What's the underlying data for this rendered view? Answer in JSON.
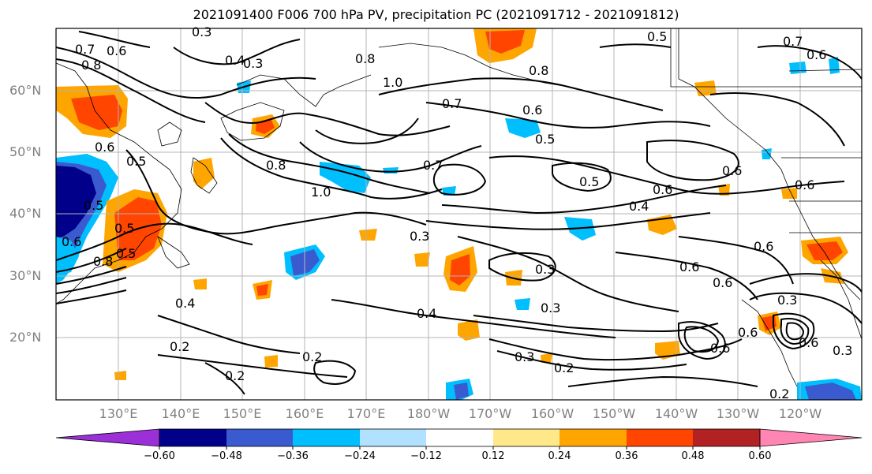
{
  "title": "2021091400 F006 700 hPa PV, precipitation PC (2021091712 - 2021091812)",
  "lat_labels": [
    "60°N",
    "50°N",
    "40°N",
    "30°N",
    "20°N"
  ],
  "lon_labels": [
    "130°E",
    "140°E",
    "150°E",
    "160°E",
    "170°E",
    "180°W",
    "170°W",
    "160°W",
    "150°W",
    "140°W",
    "130°W",
    "120°W"
  ],
  "colorbar": {
    "labels": [
      "−0.60",
      "−0.48",
      "−0.36",
      "−0.24",
      "−0.12",
      "0.12",
      "0.24",
      "0.36",
      "0.48",
      "0.60"
    ],
    "colors": [
      "#9b30d9",
      "#00008b",
      "#3a5bcf",
      "#00bfff",
      "#b0e2ff",
      "#ffffff",
      "#ffe88a",
      "#ffa500",
      "#ff4500",
      "#b22222",
      "#ff85b3"
    ]
  },
  "contour_labels": [
    "0.3",
    "0.4",
    "0.3",
    "0.8",
    "0.7",
    "0.6",
    "0.5",
    "1.0",
    "0.7",
    "0.6",
    "0.5",
    "0.7",
    "0.6",
    "0.8",
    "0.8",
    "0.5",
    "0.6",
    "0.6",
    "0.5",
    "1.0",
    "0.7",
    "0.8",
    "0.5",
    "0.4",
    "0.6",
    "0.6",
    "0.3",
    "0.3",
    "0.6",
    "0.6",
    "0.6",
    "0.3",
    "0.4",
    "0.4",
    "0.3",
    "0.2",
    "0.2",
    "0.3",
    "0.2",
    "0.2",
    "0.2",
    "0.3",
    "0.6",
    "0.6",
    "0.6",
    "0.5",
    "0.5",
    "0.8",
    "0.6"
  ],
  "colors": {
    "grid": "#b4b4b4",
    "contour": "#000000",
    "axis_label": "#808080",
    "coast": "#000000"
  }
}
